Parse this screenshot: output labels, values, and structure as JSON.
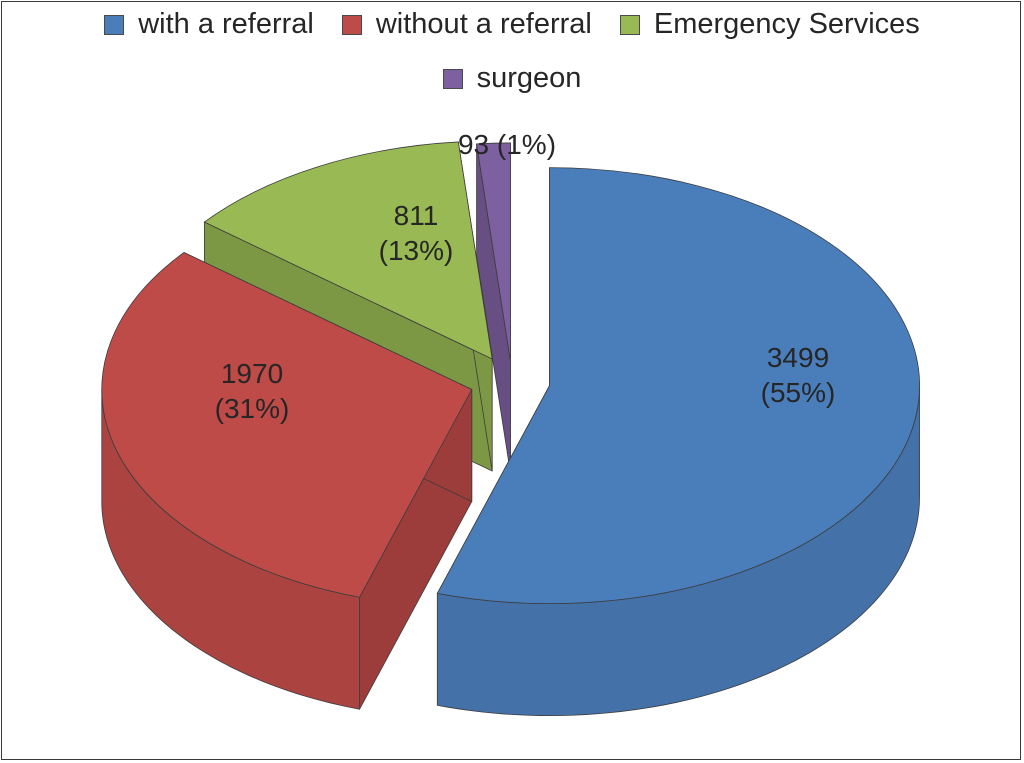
{
  "chart_data": {
    "type": "pie",
    "title": "",
    "slices": [
      {
        "name": "with a referral",
        "value": 3499,
        "percent_label": "(55%)",
        "color": "#4a7ebb"
      },
      {
        "name": "without a referral",
        "value": 1970,
        "percent_label": "(31%)",
        "color": "#be4b48"
      },
      {
        "name": "Emergency Services",
        "value": 811,
        "percent_label": "(13%)",
        "color": "#98b954"
      },
      {
        "name": "surgeon",
        "value": 93,
        "percent_label": "(1%)",
        "color": "#7d60a0"
      }
    ],
    "legend_position": "top",
    "style": "3d-exploded"
  }
}
